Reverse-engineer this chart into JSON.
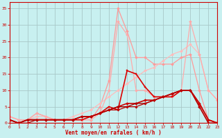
{
  "title": "",
  "xlabel": "Vent moyen/en rafales ( km/h )",
  "ylabel": "",
  "background_color": "#c8f0f0",
  "grid_color": "#a8c8c8",
  "x_ticks": [
    0,
    1,
    2,
    3,
    4,
    5,
    6,
    7,
    8,
    9,
    10,
    11,
    12,
    13,
    14,
    15,
    16,
    17,
    18,
    19,
    20,
    21,
    22,
    23
  ],
  "y_ticks": [
    0,
    5,
    10,
    15,
    20,
    25,
    30,
    35
  ],
  "xlim": [
    0,
    23
  ],
  "ylim": [
    0,
    37
  ],
  "lines": [
    {
      "x": [
        0,
        1,
        2,
        3,
        4,
        5,
        6,
        7,
        8,
        9,
        10,
        11,
        12,
        13,
        14,
        15,
        16,
        17,
        18,
        19,
        20,
        21,
        22,
        23
      ],
      "y": [
        2,
        1,
        1,
        3,
        2,
        1,
        1,
        1,
        1,
        1,
        5,
        13,
        35,
        28,
        20,
        20,
        18,
        18,
        18,
        20,
        21,
        10,
        1,
        0
      ],
      "color": "#ff9999",
      "marker": "D",
      "markersize": 2.0,
      "linewidth": 0.9
    },
    {
      "x": [
        0,
        1,
        2,
        3,
        4,
        5,
        6,
        7,
        8,
        9,
        10,
        11,
        12,
        13,
        14,
        15,
        16,
        17,
        18,
        19,
        20,
        21,
        22,
        23
      ],
      "y": [
        2,
        1,
        1,
        2,
        2,
        1,
        1,
        2,
        3,
        4,
        6,
        8,
        10,
        12,
        14,
        16,
        17,
        19,
        21,
        22,
        24,
        21,
        10,
        7
      ],
      "color": "#ffbbbb",
      "marker": "D",
      "markersize": 2.0,
      "linewidth": 0.9
    },
    {
      "x": [
        0,
        1,
        2,
        3,
        4,
        5,
        6,
        7,
        8,
        9,
        10,
        11,
        12,
        13,
        14,
        15,
        16,
        17,
        18,
        19,
        20,
        21,
        22,
        23
      ],
      "y": [
        2,
        1,
        1,
        3,
        2,
        1,
        1,
        1,
        1,
        1,
        3,
        10,
        31,
        27,
        10,
        10,
        8,
        8,
        8,
        10,
        31,
        21,
        10,
        7
      ],
      "color": "#ffaaaa",
      "marker": "D",
      "markersize": 2.0,
      "linewidth": 0.9
    },
    {
      "x": [
        0,
        1,
        2,
        3,
        4,
        5,
        6,
        7,
        8,
        9,
        10,
        11,
        12,
        13,
        14,
        15,
        16,
        17,
        18,
        19,
        20,
        21,
        22,
        23
      ],
      "y": [
        1,
        0,
        1,
        1,
        1,
        1,
        1,
        1,
        1,
        2,
        3,
        5,
        4,
        16,
        15,
        11,
        8,
        8,
        8,
        10,
        10,
        6,
        1,
        0
      ],
      "color": "#dd0000",
      "marker": "s",
      "markersize": 2.0,
      "linewidth": 1.2
    },
    {
      "x": [
        0,
        1,
        2,
        3,
        4,
        5,
        6,
        7,
        8,
        9,
        10,
        11,
        12,
        13,
        14,
        15,
        16,
        17,
        18,
        19,
        20,
        21,
        22,
        23
      ],
      "y": [
        1,
        0,
        1,
        1,
        1,
        1,
        1,
        1,
        2,
        2,
        3,
        4,
        5,
        6,
        6,
        7,
        7,
        8,
        9,
        10,
        10,
        6,
        1,
        0
      ],
      "color": "#cc0000",
      "marker": "D",
      "markersize": 2.0,
      "linewidth": 1.2
    },
    {
      "x": [
        0,
        1,
        2,
        3,
        4,
        5,
        6,
        7,
        8,
        9,
        10,
        11,
        12,
        13,
        14,
        15,
        16,
        17,
        18,
        19,
        20,
        21,
        22,
        23
      ],
      "y": [
        1,
        0,
        1,
        1,
        1,
        1,
        1,
        1,
        2,
        2,
        3,
        4,
        5,
        5,
        6,
        6,
        7,
        8,
        9,
        10,
        10,
        5,
        0,
        0
      ],
      "color": "#aa0000",
      "marker": "s",
      "markersize": 1.8,
      "linewidth": 1.0
    },
    {
      "x": [
        0,
        1,
        2,
        3,
        4,
        5,
        6,
        7,
        8,
        9,
        10,
        11,
        12,
        13,
        14,
        15,
        16,
        17,
        18,
        19,
        20,
        21,
        22,
        23
      ],
      "y": [
        1,
        0,
        0,
        1,
        1,
        1,
        1,
        1,
        2,
        2,
        3,
        4,
        4,
        5,
        5,
        6,
        7,
        8,
        9,
        10,
        10,
        5,
        0,
        0
      ],
      "color": "#bb0000",
      "marker": "D",
      "markersize": 1.8,
      "linewidth": 0.9
    }
  ]
}
